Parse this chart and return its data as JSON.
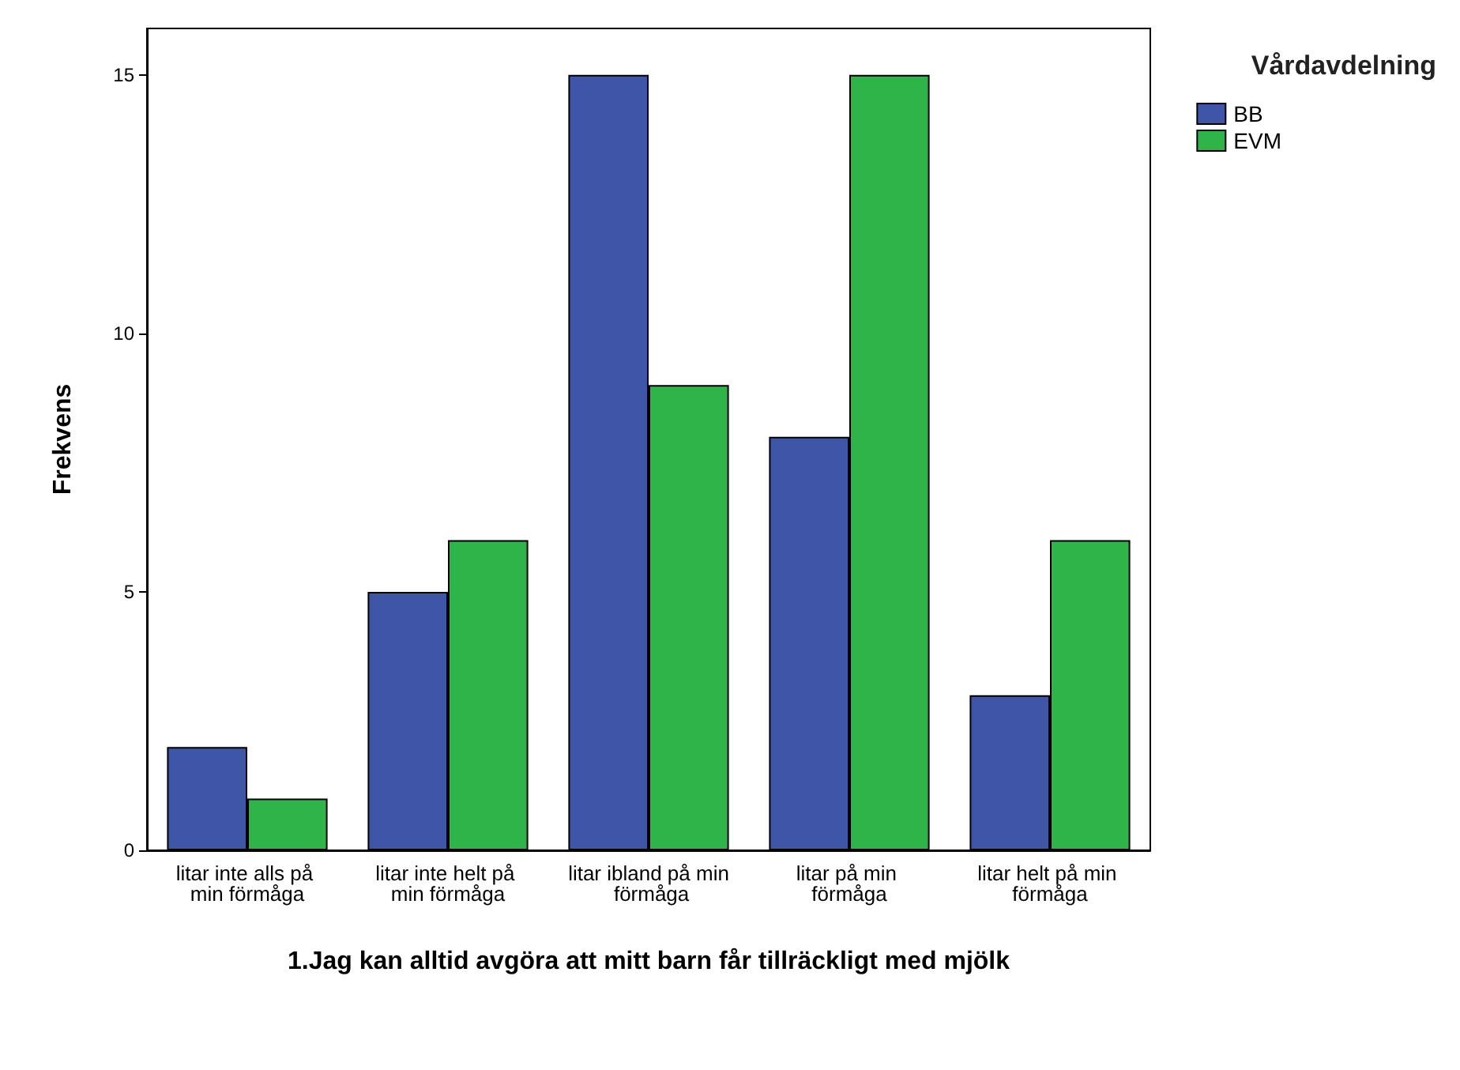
{
  "chart_data": {
    "type": "bar",
    "xlabel": "1.Jag kan alltid avgöra att mitt barn får tillräckligt med mjölk",
    "ylabel": "Frekvens",
    "legend_title": "Vårdavdelning",
    "categories": [
      "litar inte alls på min förmåga",
      "litar inte helt på min förmåga",
      "litar ibland på min förmåga",
      "litar på min förmåga",
      "litar helt på min förmåga"
    ],
    "series": [
      {
        "name": "BB",
        "color": "#3f56a8",
        "values": [
          2,
          5,
          15,
          8,
          3
        ]
      },
      {
        "name": "EVM",
        "color": "#2fb44a",
        "values": [
          1,
          6,
          9,
          15,
          6
        ]
      }
    ],
    "ylim": [
      0,
      15.9
    ],
    "yticks": [
      0,
      5,
      10,
      15
    ],
    "grid": false,
    "legend": "top right"
  }
}
